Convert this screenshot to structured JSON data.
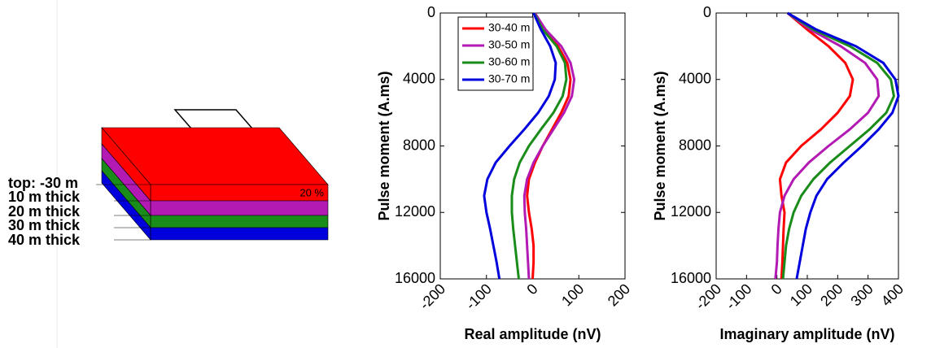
{
  "diagram": {
    "labels": [
      "top: -30 m",
      "10 m thick",
      "20 m thick",
      "30 m thick",
      "40 m thick"
    ],
    "porosity": "20 %"
  },
  "chart_data": [
    {
      "type": "line",
      "xlabel": "Real amplitude (nV)",
      "ylabel": "Pulse moment (A.ms)",
      "xlim": [
        -200,
        200
      ],
      "xticks": [
        -200,
        -100,
        0,
        100,
        200
      ],
      "ylim": [
        0,
        16000
      ],
      "yticks": [
        0,
        4000,
        8000,
        12000,
        16000
      ],
      "y_reversed": true,
      "legend": "upper-left",
      "y": [
        0,
        1000,
        2000,
        3000,
        4000,
        5000,
        6000,
        7000,
        8000,
        9000,
        10000,
        11000,
        12000,
        13000,
        14000,
        15000,
        16000
      ],
      "series": [
        {
          "name": "30-40 m",
          "color": "#ff0000",
          "values": [
            5,
            25,
            55,
            75,
            82,
            78,
            62,
            42,
            22,
            5,
            -8,
            -12,
            -8,
            -2,
            2,
            2,
            0
          ]
        },
        {
          "name": "30-50 m",
          "color": "#b31ab3",
          "values": [
            5,
            28,
            62,
            82,
            90,
            85,
            68,
            45,
            22,
            2,
            -12,
            -18,
            -17,
            -14,
            -12,
            -10,
            -8
          ]
        },
        {
          "name": "30-60 m",
          "color": "#1a8c1a",
          "values": [
            3,
            22,
            52,
            70,
            73,
            65,
            45,
            18,
            -8,
            -28,
            -40,
            -45,
            -45,
            -42,
            -38,
            -34,
            -30
          ]
        },
        {
          "name": "30-70 m",
          "color": "#0000dd",
          "values": [
            2,
            18,
            38,
            50,
            48,
            35,
            12,
            -18,
            -50,
            -80,
            -98,
            -105,
            -100,
            -92,
            -85,
            -78,
            -72
          ]
        }
      ]
    },
    {
      "type": "line",
      "xlabel": "Imaginary amplitude (nV)",
      "ylabel": "Pulse moment (A.ms)",
      "xlim": [
        -200,
        400
      ],
      "xticks": [
        -200,
        -100,
        0,
        100,
        200,
        300,
        400
      ],
      "ylim": [
        0,
        16000
      ],
      "yticks": [
        0,
        4000,
        8000,
        12000,
        16000
      ],
      "y_reversed": true,
      "y": [
        0,
        1000,
        2000,
        3000,
        4000,
        5000,
        6000,
        7000,
        8000,
        9000,
        10000,
        11000,
        12000,
        13000,
        14000,
        15000,
        16000
      ],
      "series": [
        {
          "color": "#ff0000",
          "values": [
            35,
            100,
            170,
            225,
            250,
            240,
            200,
            145,
            80,
            30,
            10,
            15,
            25,
            22,
            20,
            18,
            15
          ]
        },
        {
          "color": "#b31ab3",
          "values": [
            35,
            110,
            210,
            290,
            330,
            335,
            300,
            240,
            170,
            105,
            55,
            25,
            10,
            5,
            2,
            0,
            -5
          ]
        },
        {
          "color": "#1a8c1a",
          "values": [
            35,
            120,
            240,
            330,
            375,
            385,
            360,
            305,
            240,
            175,
            120,
            80,
            55,
            40,
            30,
            25,
            20
          ]
        },
        {
          "color": "#0000dd",
          "values": [
            35,
            130,
            260,
            350,
            390,
            400,
            380,
            335,
            280,
            220,
            165,
            130,
            110,
            95,
            85,
            75,
            65
          ]
        }
      ]
    }
  ]
}
